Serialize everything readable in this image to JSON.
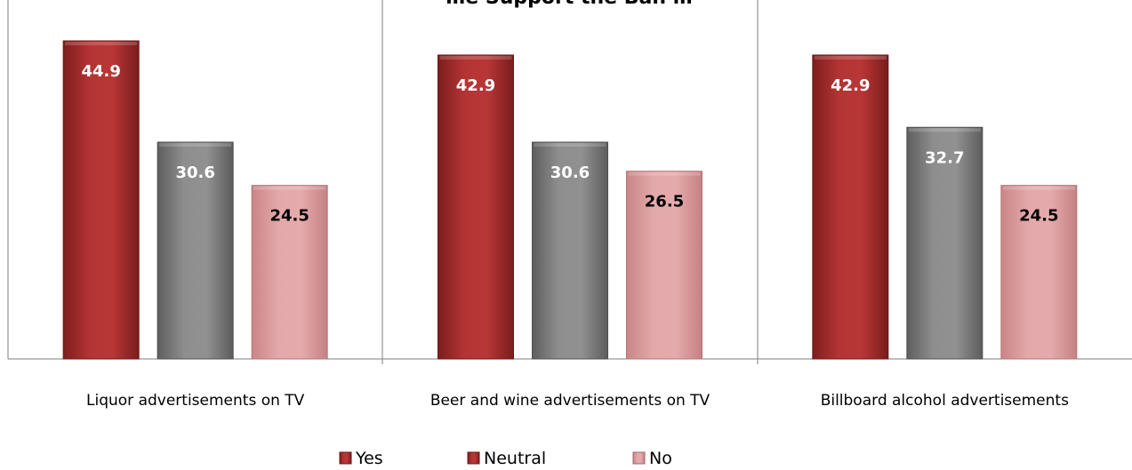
{
  "chart_data": {
    "type": "bar",
    "title": "…e Support the Ban …",
    "categories": [
      "Liquor advertisements on TV",
      "Beer and wine advertisements on TV",
      "Billboard alcohol advertisements"
    ],
    "series": [
      {
        "name": "Yes",
        "values": [
          44.9,
          42.9,
          42.9
        ],
        "color": "#b23232"
      },
      {
        "name": "Neutral",
        "values": [
          30.6,
          30.6,
          32.7
        ],
        "color": "#8a8a8a"
      },
      {
        "name": "No",
        "values": [
          24.5,
          26.5,
          24.5
        ],
        "color": "#e0a4a6"
      }
    ],
    "legend_markers": [
      "#c0392b",
      "#c0392b",
      "#e8b4b4"
    ],
    "ylim": [
      0,
      50
    ],
    "grid": false,
    "legend_position": "bottom"
  }
}
